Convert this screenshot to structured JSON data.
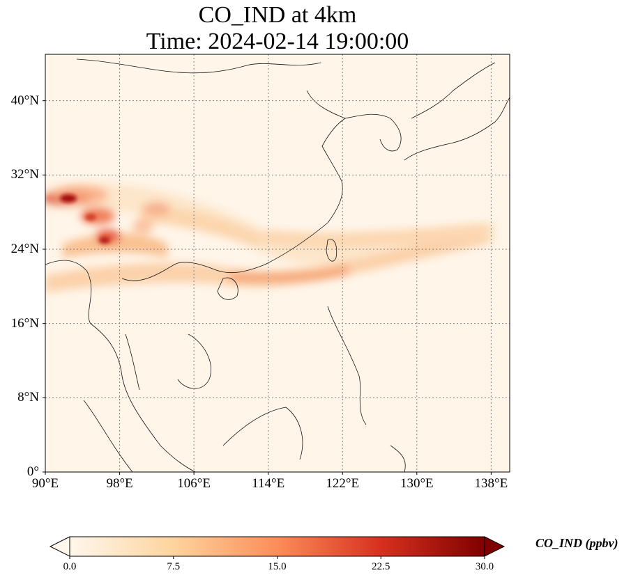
{
  "title": {
    "line1": "CO_IND at 4km",
    "line2": "Time: 2024-02-14 19:00:00"
  },
  "map": {
    "lon_range": [
      90,
      140
    ],
    "lat_range": [
      0,
      45
    ],
    "lon_ticks": [
      "90°E",
      "98°E",
      "106°E",
      "114°E",
      "122°E",
      "130°E",
      "138°E"
    ],
    "lat_ticks": [
      "0°",
      "8°N",
      "16°N",
      "24°N",
      "32°N",
      "40°N"
    ],
    "gridlines": "dotted gray",
    "colormap": "OrRd",
    "variable": "CO_IND"
  },
  "colorbar": {
    "label": "CO_IND (ppbv)",
    "ticks": [
      "0.0",
      "7.5",
      "15.0",
      "22.5",
      "30.0"
    ],
    "min": 0,
    "max": 30,
    "extend": "both"
  }
}
